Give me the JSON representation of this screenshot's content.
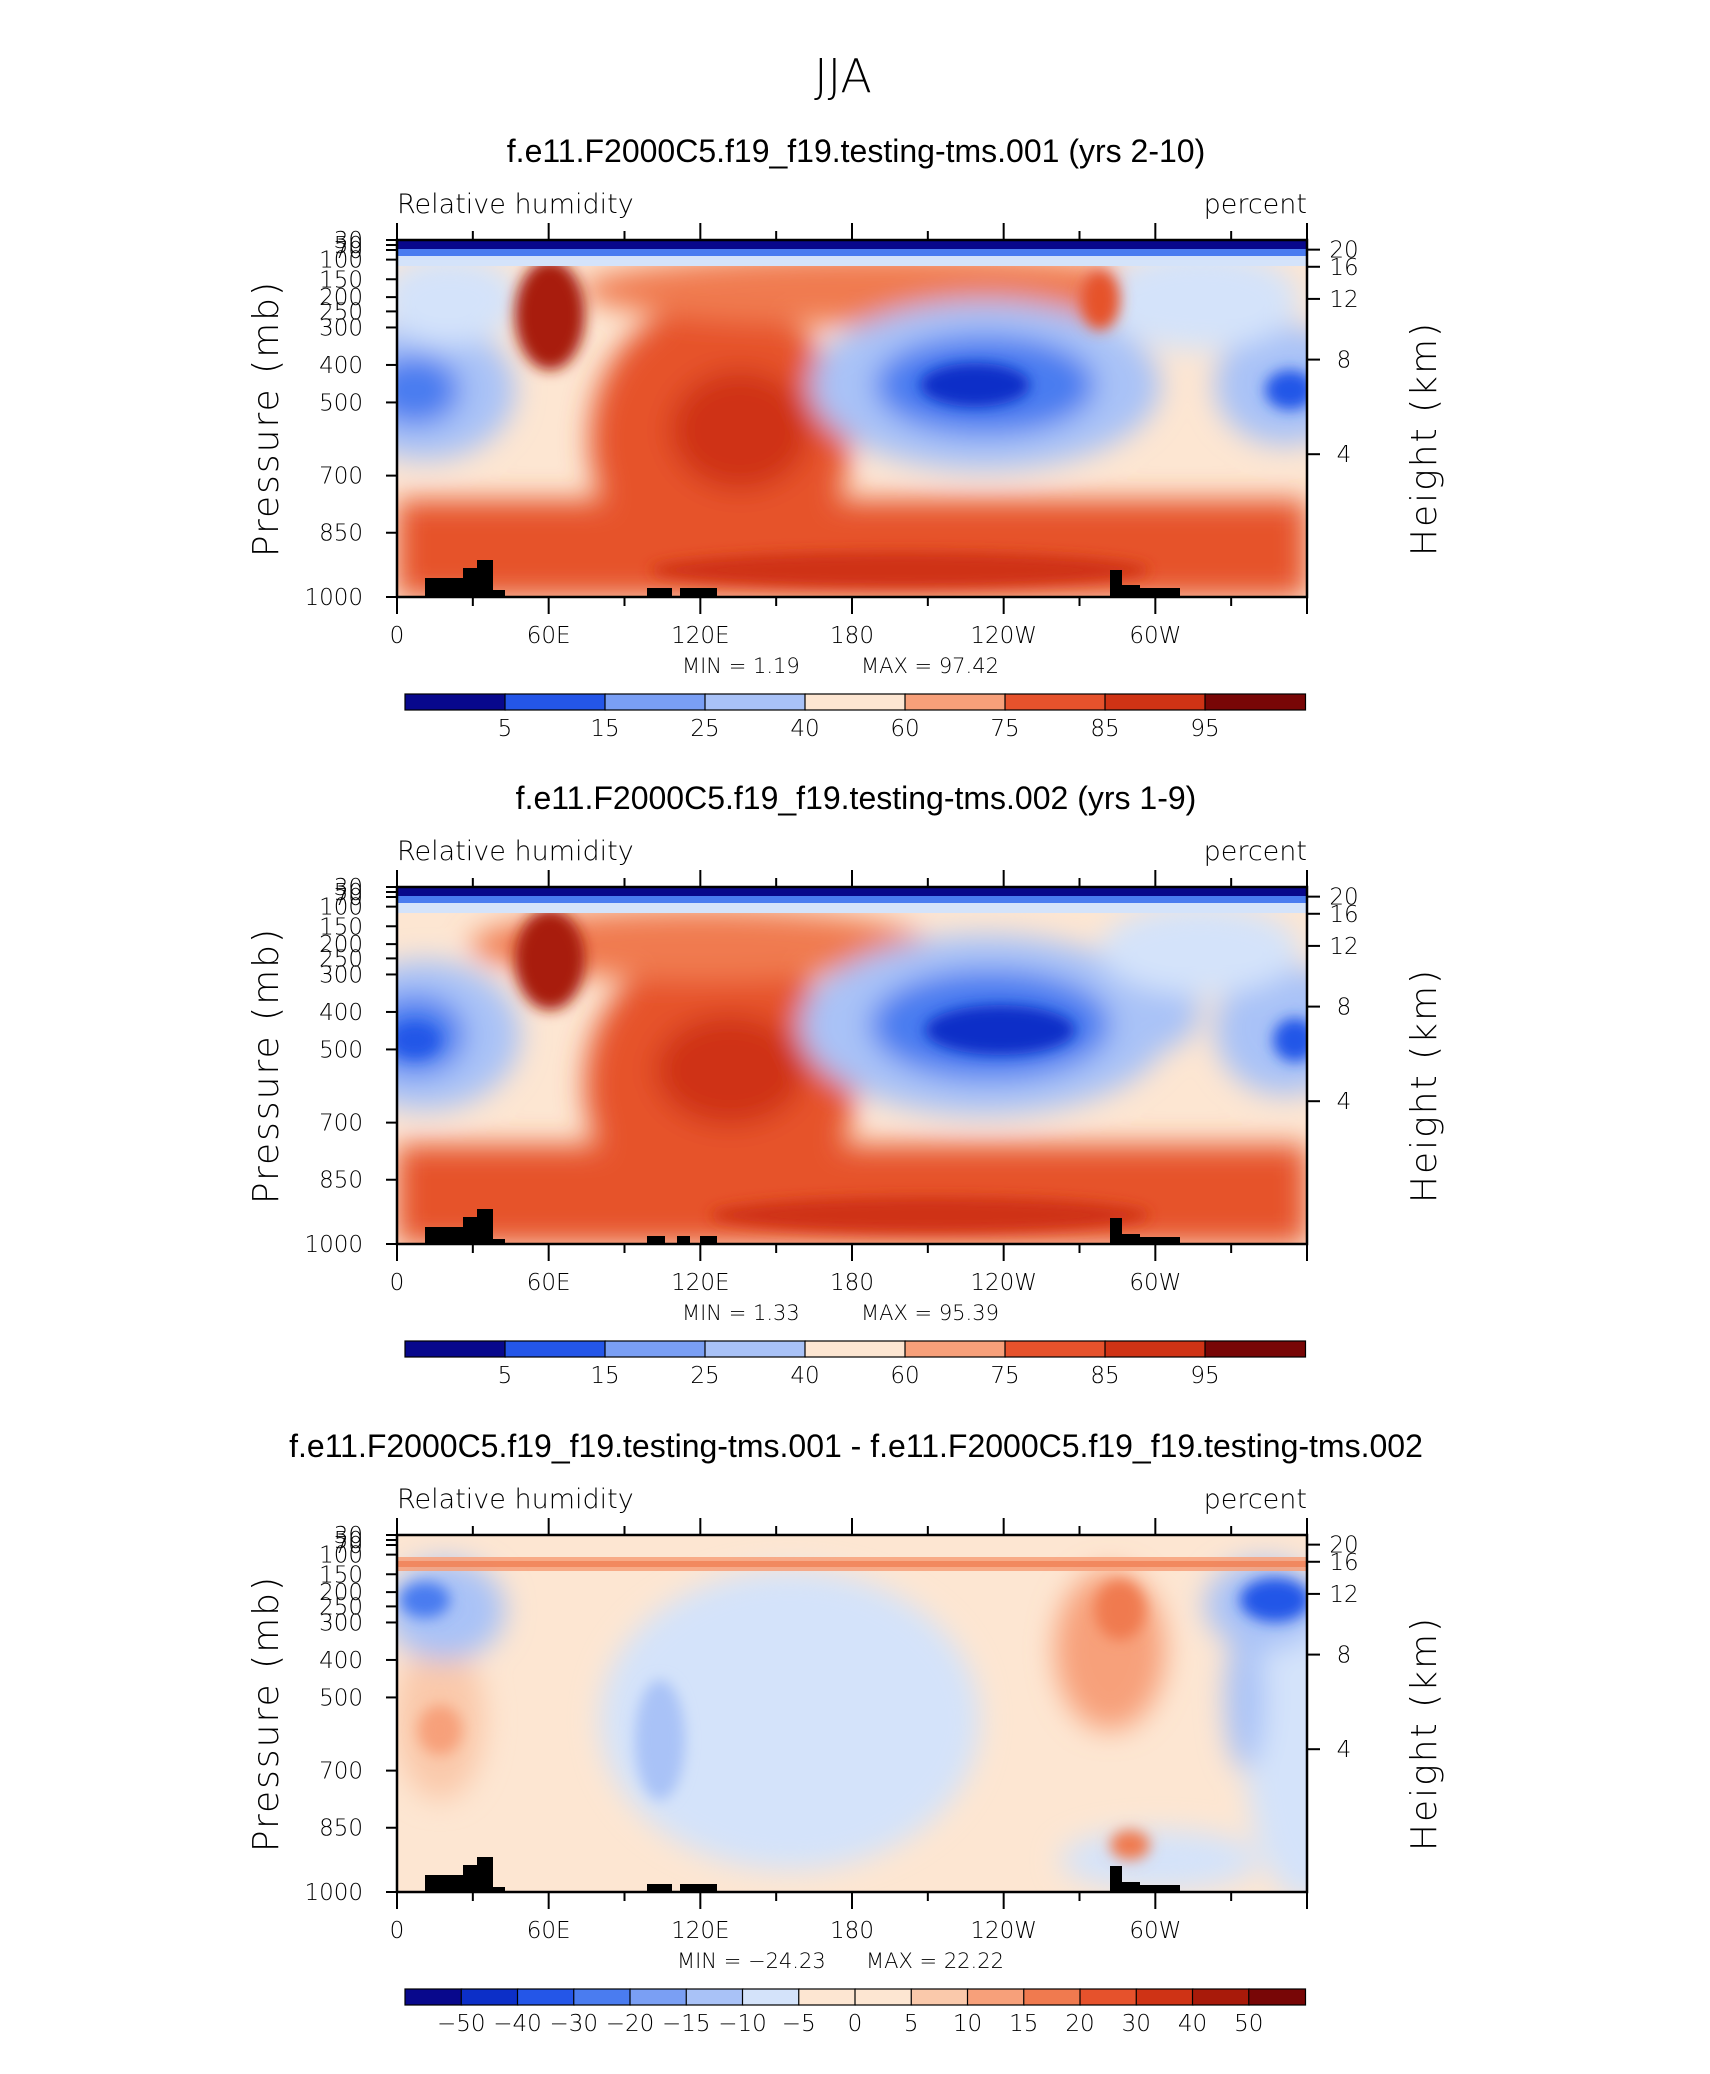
{
  "page_title": "JJA",
  "chart_data": [
    {
      "type": "contour",
      "title": "f.e11.F2000C5.f19_f19.testing-tms.001 (yrs 2-10)",
      "variable_label": "Relative humidity",
      "units_label": "percent",
      "ylabel": "Pressure (mb)",
      "right_label": "Height (km)",
      "pressure_ticks": [
        "30",
        "50",
        "70",
        "100",
        "150",
        "200",
        "250",
        "300",
        "400",
        "500",
        "700",
        "850",
        "1000"
      ],
      "height_ticks": [
        "20",
        "16",
        "12",
        "8",
        "4"
      ],
      "lon_ticks": [
        "0",
        "60E",
        "120E",
        "180",
        "120W",
        "60W"
      ],
      "min_text": "MIN =    1.19",
      "max_text": "MAX =   97.42",
      "min": 1.19,
      "max": 97.42,
      "colorbar_labels": [
        "5",
        "15",
        "25",
        "40",
        "60",
        "75",
        "85",
        "95"
      ],
      "colormap": "relhum"
    },
    {
      "type": "contour",
      "title": "f.e11.F2000C5.f19_f19.testing-tms.002 (yrs 1-9)",
      "variable_label": "Relative humidity",
      "units_label": "percent",
      "ylabel": "Pressure (mb)",
      "right_label": "Height (km)",
      "pressure_ticks": [
        "30",
        "50",
        "70",
        "100",
        "150",
        "200",
        "250",
        "300",
        "400",
        "500",
        "700",
        "850",
        "1000"
      ],
      "height_ticks": [
        "20",
        "16",
        "12",
        "8",
        "4"
      ],
      "lon_ticks": [
        "0",
        "60E",
        "120E",
        "180",
        "120W",
        "60W"
      ],
      "min_text": "MIN =    1.33",
      "max_text": "MAX =   95.39",
      "min": 1.33,
      "max": 95.39,
      "colorbar_labels": [
        "5",
        "15",
        "25",
        "40",
        "60",
        "75",
        "85",
        "95"
      ],
      "colormap": "relhum"
    },
    {
      "type": "contour",
      "title": "f.e11.F2000C5.f19_f19.testing-tms.001 - f.e11.F2000C5.f19_f19.testing-tms.002",
      "variable_label": "Relative humidity",
      "units_label": "percent",
      "ylabel": "Pressure (mb)",
      "right_label": "Height (km)",
      "pressure_ticks": [
        "30",
        "50",
        "70",
        "100",
        "150",
        "200",
        "250",
        "300",
        "400",
        "500",
        "700",
        "850",
        "1000"
      ],
      "height_ticks": [
        "20",
        "16",
        "12",
        "8",
        "4"
      ],
      "lon_ticks": [
        "0",
        "60E",
        "120E",
        "180",
        "120W",
        "60W"
      ],
      "min_text": "MIN = −24.23",
      "max_text": "MAX =   22.22",
      "min": -24.23,
      "max": 22.22,
      "colorbar_labels": [
        "−50",
        "−40",
        "−30",
        "−20",
        "−15",
        "−10",
        "−5",
        "0",
        "5",
        "10",
        "15",
        "20",
        "30",
        "40",
        "50"
      ],
      "colormap": "diff"
    }
  ],
  "colors": {
    "relhum": [
      "#08088c",
      "#0c2fc8",
      "#2456e8",
      "#4a7cf0",
      "#7a9ff4",
      "#a9c2f7",
      "#d4e3fa",
      "#fde6d2",
      "#fac9ab",
      "#f7a07a",
      "#f07a4f",
      "#e6522c",
      "#cf3315",
      "#a81a0a",
      "#780606"
    ],
    "diff": [
      "#08088c",
      "#0c2fc8",
      "#2456e8",
      "#4a7cf0",
      "#7a9ff4",
      "#a9c2f7",
      "#d4e3fa",
      "#fde6d2",
      "#fac9ab",
      "#f7a07a",
      "#f07a4f",
      "#e6522c",
      "#cf3315",
      "#a81a0a",
      "#780606"
    ],
    "topography": "#000000"
  }
}
